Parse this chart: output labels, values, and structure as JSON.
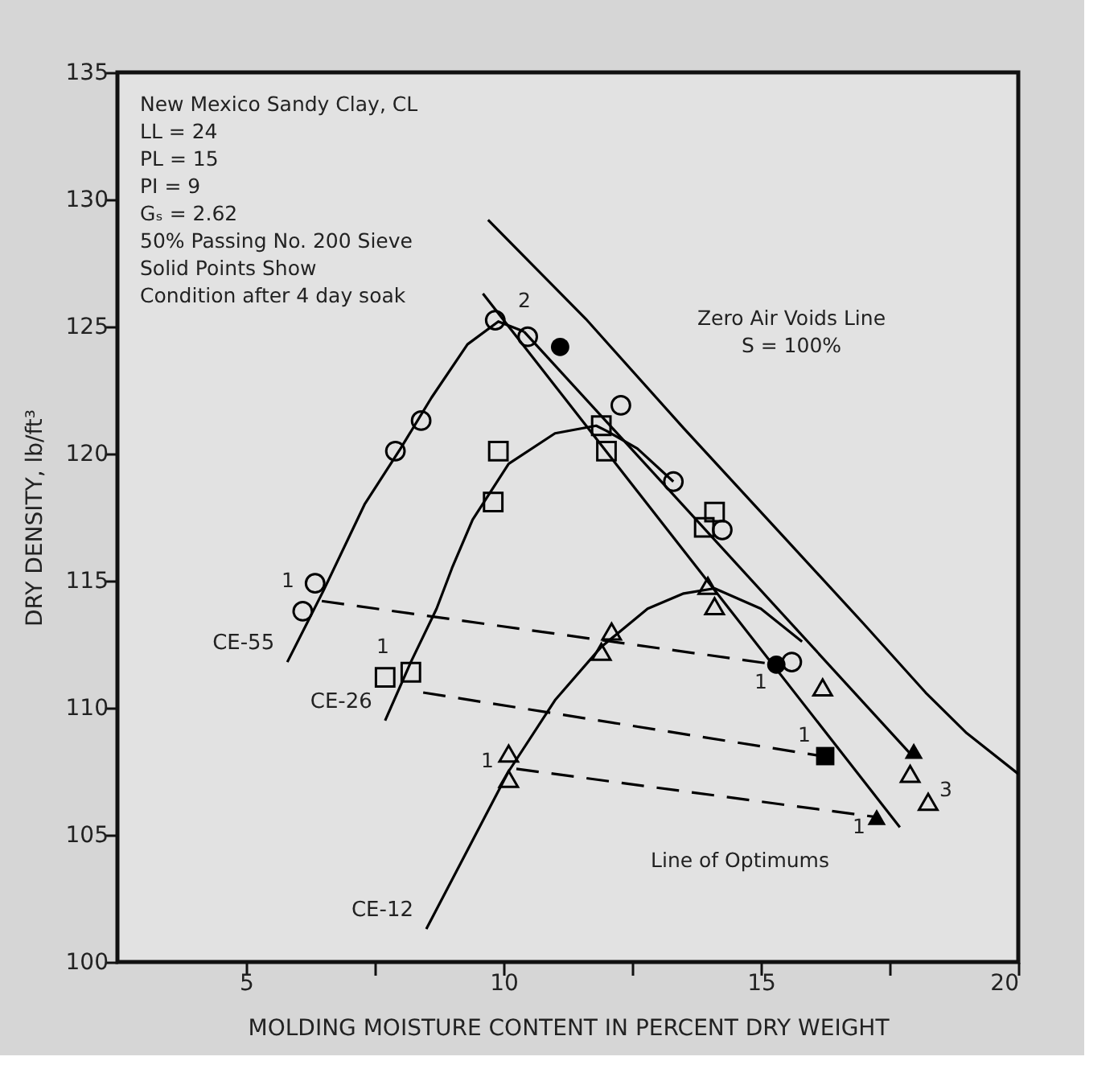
{
  "chart_data": {
    "type": "line",
    "xlabel": "MOLDING MOISTURE CONTENT IN PERCENT DRY WEIGHT",
    "ylabel": "DRY DENSITY, lb/ft³",
    "xlim": [
      2.5,
      20
    ],
    "ylim": [
      100,
      135
    ],
    "xticks": [
      5,
      {
        "value": 7.5,
        "label": null
      },
      10,
      {
        "value": 12.5,
        "label": null
      },
      15,
      {
        "value": 17.5,
        "label": null
      },
      20
    ],
    "yticks": [
      100,
      105,
      110,
      115,
      120,
      125,
      130,
      135
    ],
    "grid": false,
    "series": [
      {
        "name": "CE-55",
        "color": "#000000",
        "line_style": "solid",
        "x": [
          5.8,
          6.5,
          7.3,
          8.0,
          8.6,
          9.3,
          9.9,
          10.4
        ],
        "values": [
          111.8,
          114.6,
          118.0,
          120.2,
          122.2,
          124.3,
          125.2,
          124.8
        ]
      },
      {
        "name": "CE-26",
        "color": "#000000",
        "line_style": "solid",
        "x": [
          7.7,
          8.2,
          8.7,
          9.0,
          9.4,
          10.1,
          11.0,
          11.8,
          12.0,
          12.6,
          13.3
        ],
        "values": [
          109.5,
          111.8,
          113.9,
          115.5,
          117.4,
          119.6,
          120.8,
          121.1,
          120.9,
          120.2,
          118.9
        ]
      },
      {
        "name": "CE-12",
        "color": "#000000",
        "line_style": "solid",
        "x": [
          8.5,
          9.3,
          10.1,
          11.0,
          11.9,
          12.8,
          13.5,
          14.1,
          15.0,
          15.8
        ],
        "values": [
          101.3,
          104.4,
          107.5,
          110.3,
          112.4,
          113.9,
          114.5,
          114.7,
          113.9,
          112.6
        ]
      },
      {
        "color": "#000000",
        "line_style": "solid",
        "x": [
          10.4,
          17.9
        ],
        "values": [
          124.8,
          108.2
        ]
      },
      {
        "color": "#000000",
        "line_style": "solid",
        "x": [
          9.6,
          17.7
        ],
        "values": [
          126.3,
          105.3
        ]
      },
      {
        "color": "#000000",
        "line_style": "solid",
        "x": [
          9.7,
          11.6,
          13.5,
          15.5,
          17.0,
          18.2,
          19.0,
          20.0
        ],
        "values": [
          129.2,
          125.3,
          121.0,
          116.6,
          113.3,
          110.6,
          109.0,
          107.4
        ]
      },
      {
        "color": "#000000",
        "line_style": "dashed",
        "x": [
          6.47,
          15.3
        ],
        "values": [
          114.2,
          111.7
        ]
      },
      {
        "color": "#000000",
        "line_style": "dashed",
        "x": [
          8.44,
          16.2
        ],
        "values": [
          110.6,
          108.1
        ]
      },
      {
        "color": "#000000",
        "line_style": "dashed",
        "x": [
          10.25,
          17.25
        ],
        "values": [
          107.6,
          105.7
        ]
      },
      {
        "type": "scatter",
        "marker": "circle",
        "x": [
          6.34,
          6.1,
          7.9,
          8.4,
          9.84,
          10.47,
          12.28,
          13.3,
          14.25,
          15.6
        ],
        "values": [
          114.9,
          113.8,
          120.1,
          121.3,
          125.25,
          124.6,
          121.9,
          118.9,
          117.0,
          111.8
        ]
      },
      {
        "type": "scatter",
        "marker": "circle",
        "color": "#000000",
        "x": [
          11.1,
          15.3
        ],
        "values": [
          124.2,
          111.7
        ]
      },
      {
        "type": "scatter",
        "marker": "square",
        "x": [
          7.7,
          8.2,
          9.8,
          9.9,
          11.9,
          12.0,
          13.9,
          14.1
        ],
        "values": [
          111.2,
          111.4,
          118.1,
          120.1,
          121.1,
          120.1,
          117.1,
          117.7
        ]
      },
      {
        "type": "scatter",
        "marker": "square",
        "color": "#000000",
        "x": [
          16.25
        ],
        "values": [
          108.1
        ]
      },
      {
        "type": "scatter",
        "marker": "triangle",
        "x": [
          10.1,
          10.1,
          11.9,
          12.1,
          13.97,
          14.1,
          16.2,
          17.9,
          18.25
        ],
        "values": [
          108.2,
          107.2,
          112.2,
          113.0,
          114.8,
          114.0,
          110.8,
          107.4,
          106.3
        ]
      },
      {
        "type": "scatter",
        "marker": "triangle",
        "color": "#000000",
        "x": [
          17.25,
          17.97
        ],
        "values": [
          105.7,
          108.3
        ]
      }
    ],
    "annotations": [
      "New Mexico Sandy Clay, CL\n   LL = 24\n   PL = 15\n   PI =  9\n   Gₛ = 2.62\n50% Passing No. 200 Sieve\nSolid Points Show\nCondition after 4 day soak",
      "Zero Air Voids Line\nS = 100%",
      "Line of Optimums",
      "1",
      "1",
      "1",
      "1",
      "1",
      "1",
      "2",
      "3"
    ]
  }
}
